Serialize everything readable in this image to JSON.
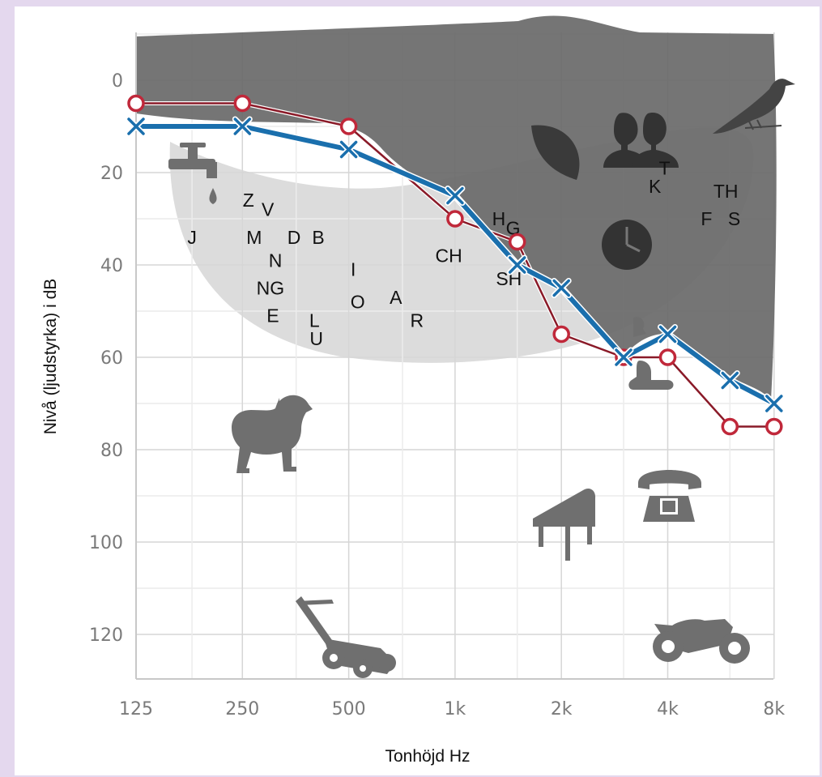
{
  "chart_data": {
    "type": "line",
    "xlabel": "Tonhöjd Hz",
    "ylabel": "Nivå (ljudstyrka) i dB",
    "x_scale": "log2",
    "y_inverted": true,
    "ylim": [
      -10,
      130
    ],
    "y_ticks": [
      "0",
      "20",
      "40",
      "60",
      "80",
      "100",
      "120"
    ],
    "x_ticks": [
      {
        "hz": 125,
        "label": "125"
      },
      {
        "hz": 250,
        "label": "250"
      },
      {
        "hz": 500,
        "label": "500"
      },
      {
        "hz": 1000,
        "label": "1k"
      },
      {
        "hz": 2000,
        "label": "2k"
      },
      {
        "hz": 4000,
        "label": "4k"
      },
      {
        "hz": 8000,
        "label": "8k"
      }
    ],
    "grid": true,
    "legend": "none",
    "series": [
      {
        "marker": "circle",
        "color": "#c0283a",
        "points": [
          {
            "hz": 125,
            "db": 5
          },
          {
            "hz": 250,
            "db": 5
          },
          {
            "hz": 500,
            "db": 10
          },
          {
            "hz": 1000,
            "db": 30
          },
          {
            "hz": 1500,
            "db": 35
          },
          {
            "hz": 2000,
            "db": 55
          },
          {
            "hz": 3000,
            "db": 60
          },
          {
            "hz": 4000,
            "db": 60
          },
          {
            "hz": 6000,
            "db": 75
          },
          {
            "hz": 8000,
            "db": 75
          }
        ]
      },
      {
        "marker": "cross",
        "color": "#1a6fad",
        "points": [
          {
            "hz": 125,
            "db": 10
          },
          {
            "hz": 250,
            "db": 10
          },
          {
            "hz": 500,
            "db": 15
          },
          {
            "hz": 1000,
            "db": 25
          },
          {
            "hz": 1500,
            "db": 40
          },
          {
            "hz": 2000,
            "db": 45
          },
          {
            "hz": 3000,
            "db": 60
          },
          {
            "hz": 4000,
            "db": 55
          },
          {
            "hz": 6000,
            "db": 65
          },
          {
            "hz": 8000,
            "db": 70
          }
        ]
      }
    ],
    "speech_sounds": [
      {
        "text": "J",
        "hz": 180,
        "db": 34
      },
      {
        "text": "Z",
        "hz": 260,
        "db": 26
      },
      {
        "text": "V",
        "hz": 295,
        "db": 28
      },
      {
        "text": "M",
        "hz": 270,
        "db": 34
      },
      {
        "text": "D",
        "hz": 350,
        "db": 34
      },
      {
        "text": "B",
        "hz": 410,
        "db": 34
      },
      {
        "text": "N",
        "hz": 310,
        "db": 39
      },
      {
        "text": "NG",
        "hz": 300,
        "db": 45
      },
      {
        "text": "E",
        "hz": 305,
        "db": 51
      },
      {
        "text": "L",
        "hz": 400,
        "db": 52
      },
      {
        "text": "U",
        "hz": 405,
        "db": 56
      },
      {
        "text": "I",
        "hz": 515,
        "db": 41
      },
      {
        "text": "O",
        "hz": 530,
        "db": 48
      },
      {
        "text": "A",
        "hz": 680,
        "db": 47
      },
      {
        "text": "R",
        "hz": 780,
        "db": 52
      },
      {
        "text": "CH",
        "hz": 960,
        "db": 38
      },
      {
        "text": "H",
        "hz": 1330,
        "db": 30
      },
      {
        "text": "G",
        "hz": 1460,
        "db": 32
      },
      {
        "text": "SH",
        "hz": 1420,
        "db": 43
      },
      {
        "text": "T",
        "hz": 3920,
        "db": 19
      },
      {
        "text": "K",
        "hz": 3680,
        "db": 23
      },
      {
        "text": "TH",
        "hz": 5840,
        "db": 24
      },
      {
        "text": "F",
        "hz": 5150,
        "db": 30
      },
      {
        "text": "S",
        "hz": 6170,
        "db": 30
      }
    ],
    "icons": [
      "faucet-icon",
      "water-drop-icon",
      "leaf-icon",
      "people-silhouette-icon",
      "bird-icon",
      "clock-icon",
      "bell-icon",
      "dog-icon",
      "telephone-icon",
      "piano-icon",
      "lawnmower-icon",
      "motorcycle-icon"
    ]
  }
}
